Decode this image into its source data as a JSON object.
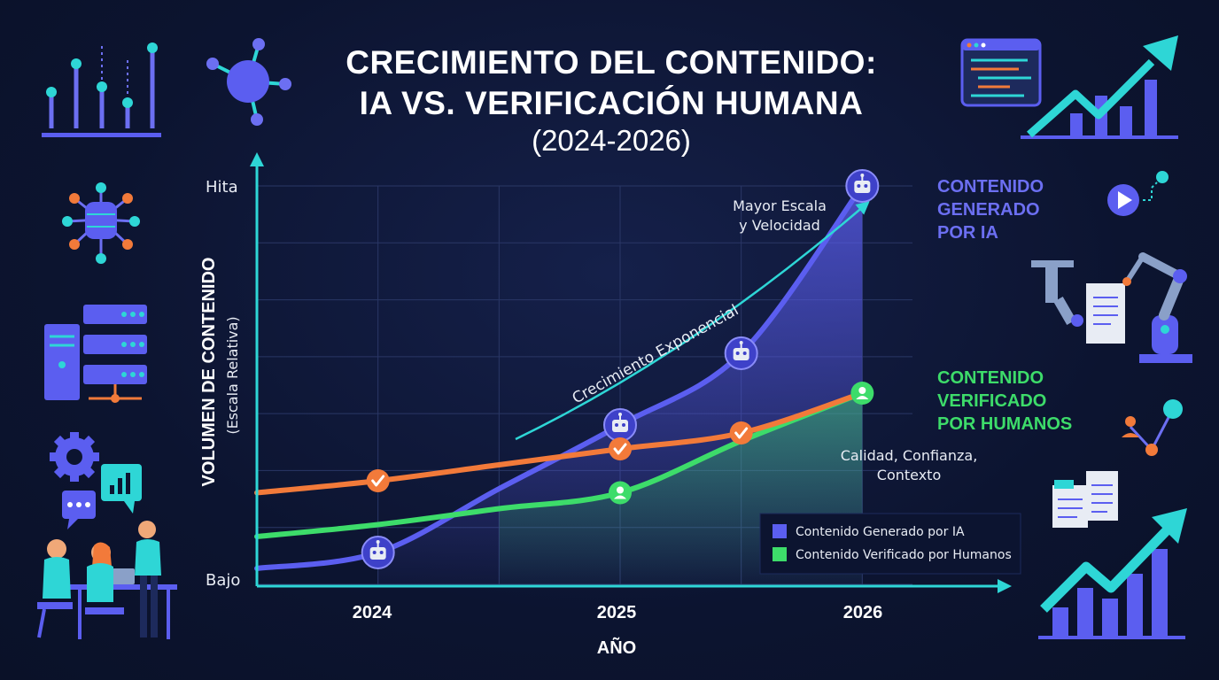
{
  "title_line1": "CRECIMIENTO DEL CONTENIDO:",
  "title_line2": "IA VS. VERIFICACIÓN HUMANA",
  "subtitle": "(2024-2026)",
  "colors": {
    "background": "#0c1430",
    "axis": "#2ed6d6",
    "ai": "#5b5ef0",
    "human": "#3ddc6a",
    "orange": "#f27a3a",
    "teal_arrow": "#2ed6d6"
  },
  "chart_data": {
    "type": "line",
    "xlabel": "AÑO",
    "ylabel": "VOLUMEN DE CONTENIDO",
    "ylabel_sub": "(Escala Relativa)",
    "y_ticks": [
      "Hita",
      "Bajo"
    ],
    "x_ticks": [
      "2024",
      "2025",
      "2026"
    ],
    "xlim": [
      2023.5,
      2026.5
    ],
    "ylim": [
      0,
      100
    ],
    "series": [
      {
        "name": "Contenido Generado por IA",
        "color": "#5b5ef0",
        "x": [
          2023.5,
          2024.0,
          2024.5,
          2025.0,
          2025.5,
          2026.0
        ],
        "y": [
          4,
          8,
          24,
          40,
          58,
          100
        ],
        "markers_at": [
          2024.0,
          2025.0,
          2025.5,
          2026.0
        ],
        "marker_icon": "robot-icon"
      },
      {
        "name": "Contenido Verificado por Humanos",
        "color": "#3ddc6a",
        "x": [
          2023.5,
          2024.0,
          2024.5,
          2025.0,
          2025.5,
          2026.0
        ],
        "y": [
          12,
          15,
          19,
          23,
          36,
          48
        ],
        "markers_at": [
          2025.0,
          2026.0
        ],
        "marker_icon": "person-icon"
      },
      {
        "name": "",
        "color": "#f27a3a",
        "x": [
          2023.5,
          2024.0,
          2024.5,
          2025.0,
          2025.5,
          2026.0
        ],
        "y": [
          23,
          26,
          30,
          34,
          38,
          48
        ],
        "markers_at": [
          2024.0,
          2025.0,
          2025.5
        ],
        "marker_icon": "check-icon"
      }
    ],
    "annotations": {
      "exponential": "Crecimiento Exponencial",
      "scale": [
        "Mayor Escala",
        "y Velocidad"
      ],
      "quality": [
        "Calidad, Confianza,",
        "Contexto"
      ],
      "ai_label": [
        "CONTENIDO",
        "GENERADO",
        "POR IA"
      ],
      "human_label": [
        "CONTENIDO",
        "VERIFICADO",
        "POR HUMANOS"
      ]
    },
    "legend": {
      "placement": "bottom-right",
      "items": [
        "Contenido Generado por IA",
        "Contenido Verificado por Humanos"
      ]
    },
    "grid": true
  }
}
